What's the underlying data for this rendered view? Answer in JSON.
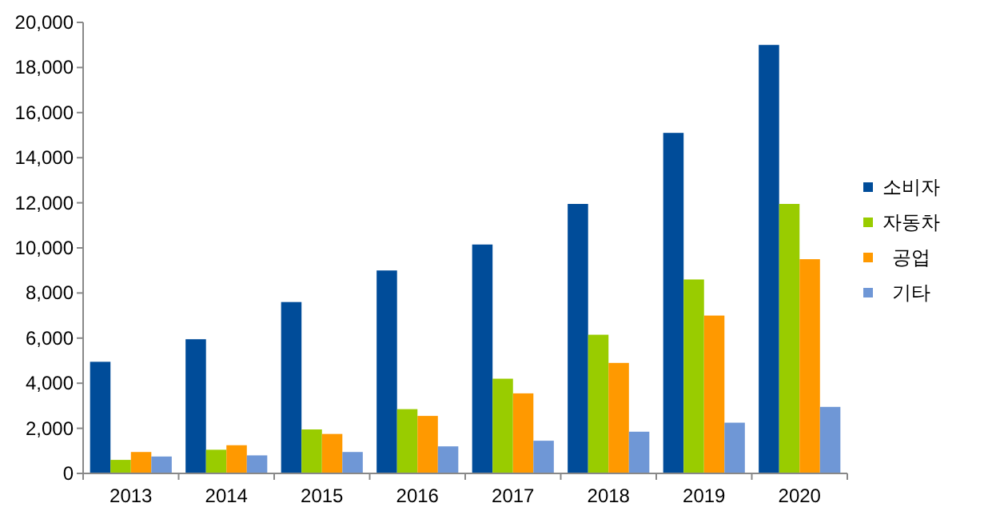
{
  "chart_data": {
    "type": "bar",
    "categories": [
      "2013",
      "2014",
      "2015",
      "2016",
      "2017",
      "2018",
      "2019",
      "2020"
    ],
    "series": [
      {
        "name": "소비자",
        "color": "#004c99",
        "values": [
          4950,
          5950,
          7600,
          9000,
          10150,
          11950,
          15100,
          19000
        ]
      },
      {
        "name": "자동차",
        "color": "#99cc00",
        "values": [
          600,
          1050,
          1950,
          2850,
          4200,
          6150,
          8600,
          11950
        ]
      },
      {
        "name": "공업",
        "color": "#ff9900",
        "values": [
          950,
          1250,
          1750,
          2550,
          3550,
          4900,
          7000,
          9500
        ]
      },
      {
        "name": "기타",
        "color": "#6f97d6",
        "values": [
          750,
          800,
          950,
          1200,
          1450,
          1850,
          2250,
          2950
        ]
      }
    ],
    "ylim": [
      0,
      20000
    ],
    "yticks": [
      {
        "value": 0,
        "label": "0"
      },
      {
        "value": 2000,
        "label": "2,000"
      },
      {
        "value": 4000,
        "label": "4,000"
      },
      {
        "value": 6000,
        "label": "6,000"
      },
      {
        "value": 8000,
        "label": "8,000"
      },
      {
        "value": 10000,
        "label": "10,000"
      },
      {
        "value": 12000,
        "label": "12,000"
      },
      {
        "value": 14000,
        "label": "14,000"
      },
      {
        "value": 16000,
        "label": "16,000"
      },
      {
        "value": 18000,
        "label": "18,000"
      },
      {
        "value": 20000,
        "label": "20,000"
      }
    ],
    "legend": "right"
  }
}
